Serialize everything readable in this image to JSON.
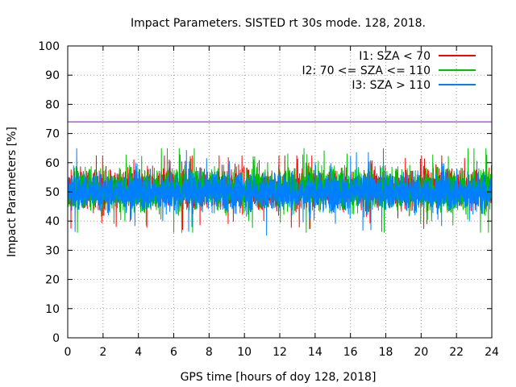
{
  "chart_data": {
    "type": "line",
    "title": "Impact Parameters. SISTED rt 30s mode. 128, 2018.",
    "xlabel": "GPS time [hours of doy 128, 2018]",
    "ylabel": "Impact Parameters [%]",
    "xlim": [
      0,
      24
    ],
    "ylim": [
      0,
      100
    ],
    "xticks": [
      0,
      2,
      4,
      6,
      8,
      10,
      12,
      14,
      16,
      18,
      20,
      22,
      24
    ],
    "yticks": [
      0,
      10,
      20,
      30,
      40,
      50,
      60,
      70,
      80,
      90,
      100
    ],
    "xtick_labels": [
      "0",
      "2",
      "4",
      "6",
      "8",
      "10",
      "12",
      "14",
      "16",
      "18",
      "20",
      "22",
      "24"
    ],
    "ytick_labels": [
      "0",
      "10",
      "20",
      "30",
      "40",
      "50",
      "60",
      "70",
      "80",
      "90",
      "100"
    ],
    "grid": true,
    "legend_position": "top-right",
    "threshold": {
      "value": 74,
      "color": "#9400d3"
    },
    "series": [
      {
        "name": "I1: SZA < 70",
        "color": "#ff0000",
        "mean": 51,
        "typical_range": [
          44,
          58
        ],
        "extreme_range": [
          37,
          62.5
        ]
      },
      {
        "name": "I2: 70 <= SZA <= 110",
        "color": "#00c000",
        "mean": 51,
        "typical_range": [
          43,
          59
        ],
        "extreme_range": [
          36,
          65
        ]
      },
      {
        "name": "I3: SZA > 110",
        "color": "#0080ff",
        "mean": 50,
        "typical_range": [
          43,
          57
        ],
        "extreme_range": [
          34,
          65
        ]
      }
    ]
  }
}
